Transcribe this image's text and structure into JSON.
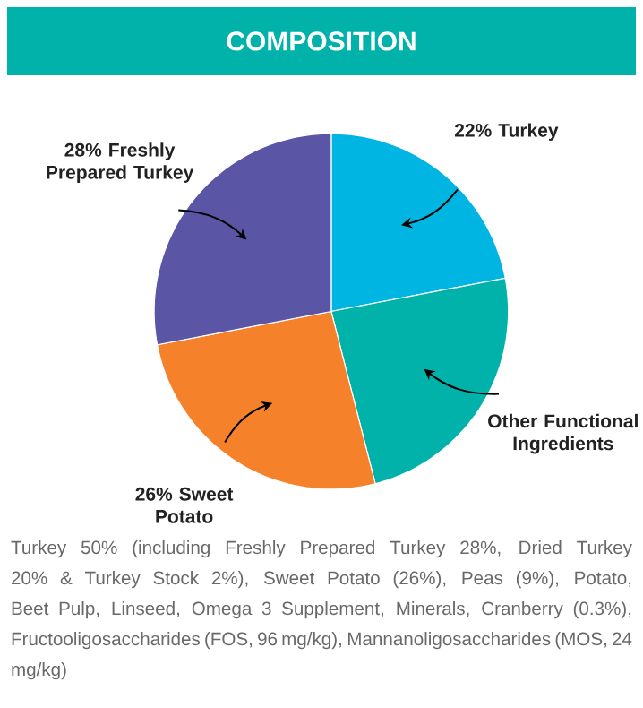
{
  "chart_data": {
    "type": "pie",
    "title": "COMPOSITION",
    "categories": [
      "22% Turkey",
      "Other Functional Ingredients",
      "26% Sweet Potato",
      "28% Freshly Prepared Turkey"
    ],
    "values": [
      22,
      24,
      26,
      28
    ],
    "colors": [
      "#00b5e2",
      "#00b2a9",
      "#f5822a",
      "#5b55a5"
    ],
    "annotations": [
      "Turkey 50% (including Freshly Prepared Turkey 28%, Dried Turkey 20% & Turkey Stock 2%), Sweet Potato (26%), Peas (9%), Potato, Beet Pulp, Linseed, Omega 3 Supplement, Minerals, Cranberry (0.3%), Fructooligosaccharides (FOS, 96 mg/kg), Mannanoligosaccharides (MOS, 24 mg/kg)"
    ]
  }
}
